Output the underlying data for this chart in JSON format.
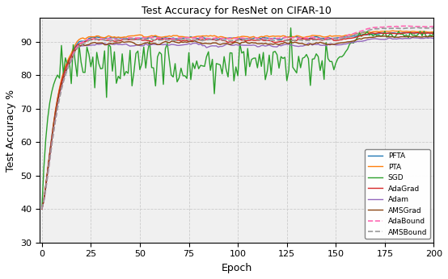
{
  "title": "Test Accuracy for ResNet on CIFAR-10",
  "xlabel": "Epoch",
  "ylabel": "Test Accuracy %",
  "ylim": [
    30,
    97
  ],
  "xlim": [
    -1,
    200
  ],
  "yticks": [
    30,
    40,
    50,
    60,
    70,
    80,
    90
  ],
  "xticks": [
    0,
    25,
    50,
    75,
    100,
    125,
    150,
    175,
    200
  ],
  "series": {
    "PFTA": {
      "color": "#1f77b4",
      "linestyle": "-",
      "linewidth": 1.0
    },
    "PTA": {
      "color": "#ff7f0e",
      "linestyle": "-",
      "linewidth": 1.0
    },
    "SGD": {
      "color": "#2ca02c",
      "linestyle": "-",
      "linewidth": 1.0
    },
    "AdaGrad": {
      "color": "#d62728",
      "linestyle": "-",
      "linewidth": 1.0
    },
    "Adam": {
      "color": "#9467bd",
      "linestyle": "-",
      "linewidth": 1.0
    },
    "AMSGrad": {
      "color": "#8B4513",
      "linestyle": "-",
      "linewidth": 1.0
    },
    "AdaBound": {
      "color": "#ff69b4",
      "linestyle": "--",
      "linewidth": 1.2
    },
    "AMSBound": {
      "color": "#999999",
      "linestyle": "--",
      "linewidth": 1.2
    }
  },
  "legend_loc": "lower right",
  "grid_color": "#cccccc",
  "background_color": "#f0f0f0"
}
